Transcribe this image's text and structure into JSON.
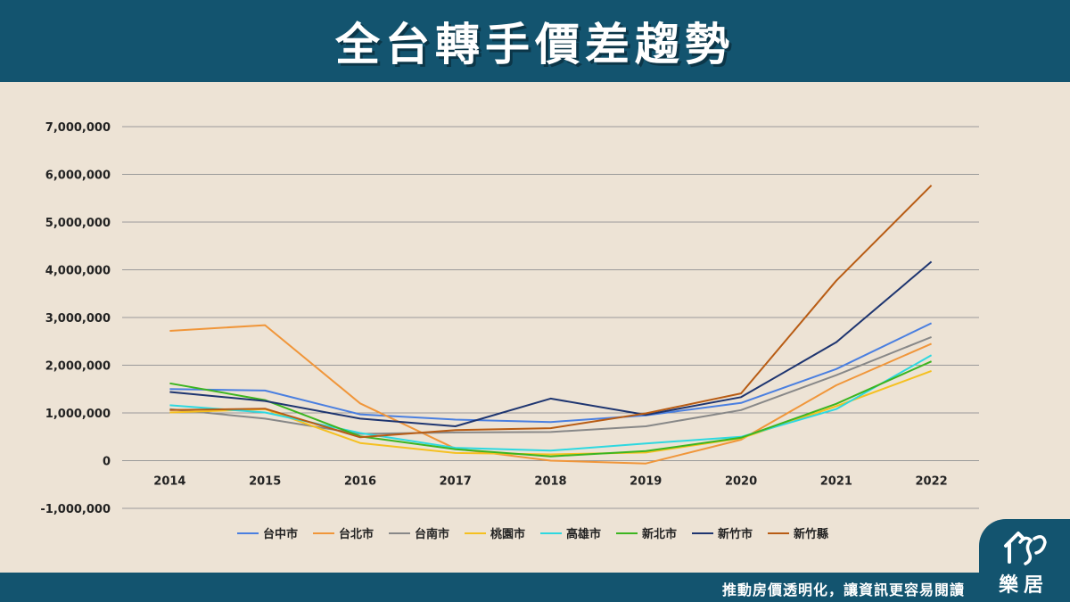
{
  "header": {
    "title": "全台轉手價差趨勢"
  },
  "footer": {
    "slogan": "推動房價透明化，讓資訊更容易閱讀"
  },
  "logo": {
    "text": "樂居"
  },
  "chart_data": {
    "type": "line",
    "title": "",
    "xlabel": "",
    "ylabel": "",
    "categories": [
      "2014",
      "2015",
      "2016",
      "2017",
      "2018",
      "2019",
      "2020",
      "2021",
      "2022"
    ],
    "ylim": [
      -1000000,
      7000000
    ],
    "yticks": [
      7000000,
      6000000,
      5000000,
      4000000,
      3000000,
      2000000,
      1000000,
      0,
      -1000000
    ],
    "ytick_labels": [
      "7,000,000",
      "6,000,000",
      "5,000,000",
      "4,000,000",
      "3,000,000",
      "2,000,000",
      "1,000,000",
      "0",
      "-1,000,000"
    ],
    "grid": true,
    "legend_position": "bottom",
    "series": [
      {
        "name": "台中市",
        "color": "#4a7fe0",
        "values": [
          1500000,
          1470000,
          970000,
          860000,
          810000,
          950000,
          1210000,
          1920000,
          2880000
        ]
      },
      {
        "name": "台北市",
        "color": "#f0963a",
        "values": [
          2720000,
          2840000,
          1200000,
          250000,
          0,
          -60000,
          440000,
          1580000,
          2450000
        ]
      },
      {
        "name": "台南市",
        "color": "#888888",
        "values": [
          1080000,
          880000,
          560000,
          590000,
          600000,
          720000,
          1060000,
          1790000,
          2590000
        ]
      },
      {
        "name": "桃園市",
        "color": "#f5c020",
        "values": [
          1010000,
          1080000,
          370000,
          160000,
          130000,
          170000,
          470000,
          1140000,
          1880000
        ]
      },
      {
        "name": "高雄市",
        "color": "#2ed8e0",
        "values": [
          1160000,
          1010000,
          580000,
          270000,
          210000,
          360000,
          500000,
          1080000,
          2210000
        ]
      },
      {
        "name": "新北市",
        "color": "#3cb520",
        "values": [
          1620000,
          1270000,
          510000,
          240000,
          90000,
          200000,
          480000,
          1190000,
          2080000
        ]
      },
      {
        "name": "新竹市",
        "color": "#1e3570",
        "values": [
          1440000,
          1250000,
          880000,
          720000,
          1300000,
          960000,
          1330000,
          2480000,
          4170000
        ]
      },
      {
        "name": "新竹縣",
        "color": "#b85c14",
        "values": [
          1060000,
          1090000,
          490000,
          640000,
          680000,
          990000,
          1410000,
          3770000,
          5770000
        ]
      }
    ]
  }
}
